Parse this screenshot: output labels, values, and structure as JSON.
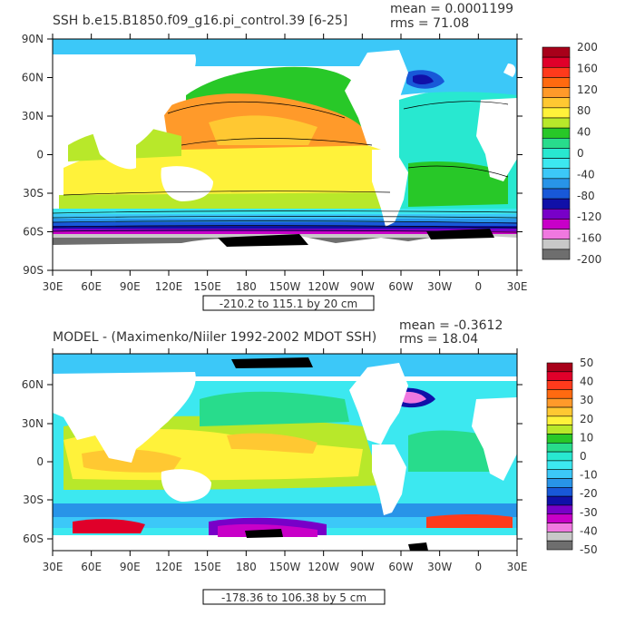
{
  "panels": [
    {
      "id": "top",
      "title": "SSH b.e15.B1850.f09_g16.pi_control.39 [6-25]",
      "stats": {
        "mean": "mean = 0.0001199",
        "rms": "rms = 71.08"
      },
      "range_label": "-210.2 to 115.1 by 20 cm",
      "lat_labels": [
        "90N",
        "60N",
        "30N",
        "0",
        "30S",
        "60S",
        "90S"
      ],
      "lon_labels": [
        "30E",
        "60E",
        "90E",
        "120E",
        "150E",
        "180",
        "150W",
        "120W",
        "90W",
        "60W",
        "30W",
        "0",
        "30E"
      ],
      "colorbar": {
        "labels": [
          "200",
          "160",
          "120",
          "80",
          "40",
          "0",
          "-40",
          "-80",
          "-120",
          "-160",
          "-200"
        ],
        "colors": [
          "#a8001a",
          "#e0002a",
          "#ff3a1c",
          "#ff6a10",
          "#ff9a2a",
          "#ffc832",
          "#fff23a",
          "#b8e82a",
          "#28c828",
          "#28dc8c",
          "#28e8d0",
          "#3ce8f0",
          "#3cc8f8",
          "#2894e8",
          "#1858d8",
          "#1010a8",
          "#7800c8",
          "#c800c8",
          "#f078e0",
          "#c8c8c8",
          "#6e6e6e"
        ]
      }
    },
    {
      "id": "bottom",
      "title": "MODEL - (Maximenko/Niiler 1992-2002 MDOT SSH)",
      "stats": {
        "mean": "mean = -0.3612",
        "rms": "rms = 18.04"
      },
      "range_label": "-178.36 to 106.38 by 5 cm",
      "lat_labels": [
        "60N",
        "30N",
        "0",
        "30S",
        "60S"
      ],
      "lon_labels": [
        "30E",
        "60E",
        "90E",
        "120E",
        "150E",
        "180",
        "150W",
        "120W",
        "90W",
        "60W",
        "30W",
        "0",
        "30E"
      ],
      "colorbar": {
        "labels": [
          "50",
          "40",
          "30",
          "20",
          "10",
          "0",
          "-10",
          "-20",
          "-30",
          "-40",
          "-50"
        ],
        "colors": [
          "#a8001a",
          "#e0002a",
          "#ff3a1c",
          "#ff6a10",
          "#ff9a2a",
          "#ffc832",
          "#fff23a",
          "#b8e82a",
          "#28c828",
          "#28dc8c",
          "#28e8d0",
          "#3ce8f0",
          "#3cc8f8",
          "#2894e8",
          "#1858d8",
          "#1010a8",
          "#7800c8",
          "#c800c8",
          "#f078e0",
          "#c8c8c8",
          "#6e6e6e"
        ]
      }
    }
  ]
}
